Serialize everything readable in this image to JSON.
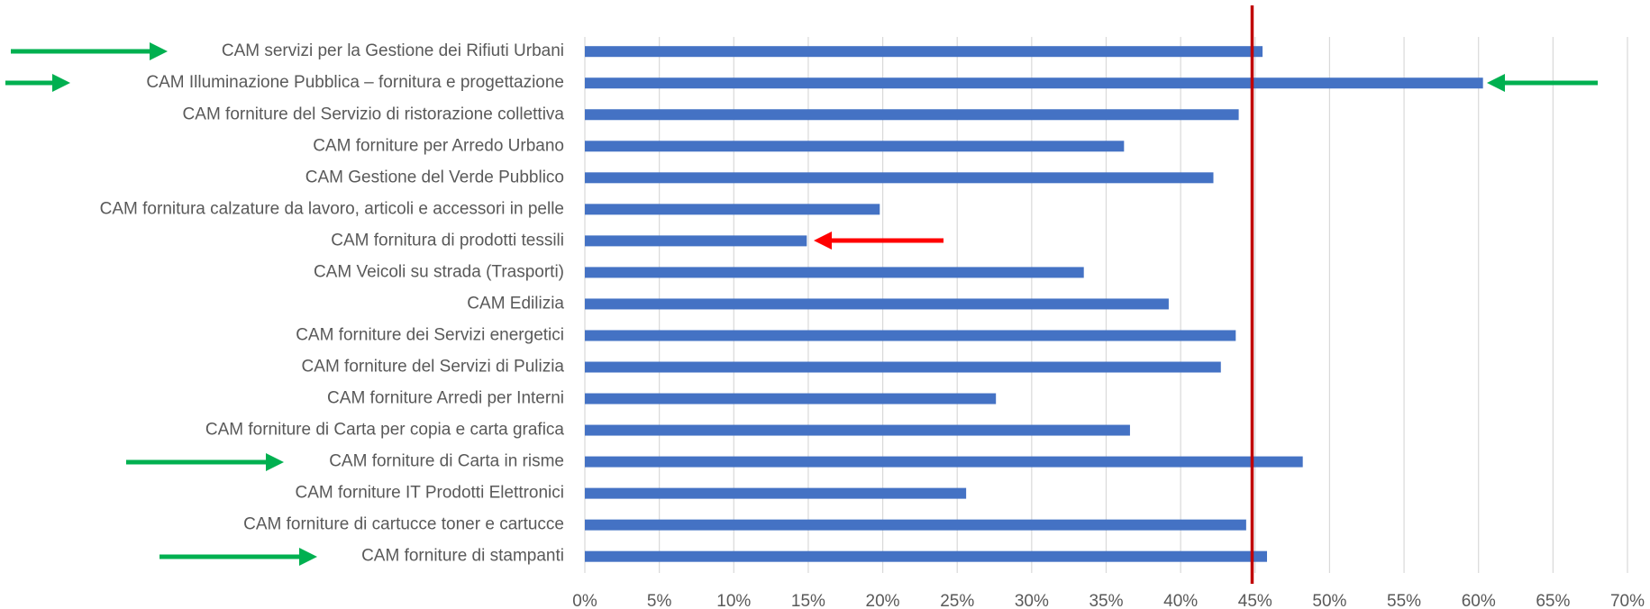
{
  "chart_data": {
    "type": "barh",
    "categories": [
      "CAM servizi per la Gestione dei Rifiuti Urbani",
      "CAM Illuminazione Pubblica – fornitura e progettazione",
      "CAM forniture del Servizio di ristorazione collettiva",
      "CAM forniture per Arredo Urbano",
      "CAM Gestione del Verde Pubblico",
      "CAM fornitura calzature da lavoro, articoli e accessori in pelle",
      "CAM fornitura di prodotti tessili",
      "CAM Veicoli su strada (Trasporti)",
      "CAM Edilizia",
      "CAM forniture dei Servizi energetici",
      "CAM forniture del Servizi di Pulizia",
      "CAM forniture Arredi per Interni",
      "CAM forniture di Carta per copia e carta grafica",
      "CAM forniture di Carta in risme",
      "CAM forniture IT Prodotti Elettronici",
      "CAM forniture di cartucce toner e cartucce",
      "CAM forniture di stampanti"
    ],
    "values": [
      45.5,
      60.3,
      43.9,
      36.2,
      42.2,
      19.8,
      14.9,
      33.5,
      39.2,
      43.7,
      42.7,
      27.6,
      36.6,
      48.2,
      25.6,
      44.4,
      45.8
    ],
    "color": "#4472c4",
    "xlim": [
      0,
      70
    ],
    "xticks": [
      {
        "value": 0,
        "label": "0%"
      },
      {
        "value": 5,
        "label": "5%"
      },
      {
        "value": 10,
        "label": "10%"
      },
      {
        "value": 15,
        "label": "15%"
      },
      {
        "value": 20,
        "label": "20%"
      },
      {
        "value": 25,
        "label": "25%"
      },
      {
        "value": 30,
        "label": "30%"
      },
      {
        "value": 35,
        "label": "35%"
      },
      {
        "value": 40,
        "label": "40%"
      },
      {
        "value": 45,
        "label": "45%"
      },
      {
        "value": 50,
        "label": "50%"
      },
      {
        "value": 55,
        "label": "55%"
      },
      {
        "value": 60,
        "label": "60%"
      },
      {
        "value": 65,
        "label": "65%"
      },
      {
        "value": 70,
        "label": "70%"
      }
    ],
    "grid": true,
    "reference_line": {
      "value": 44.8,
      "color": "#c00000"
    }
  }
}
